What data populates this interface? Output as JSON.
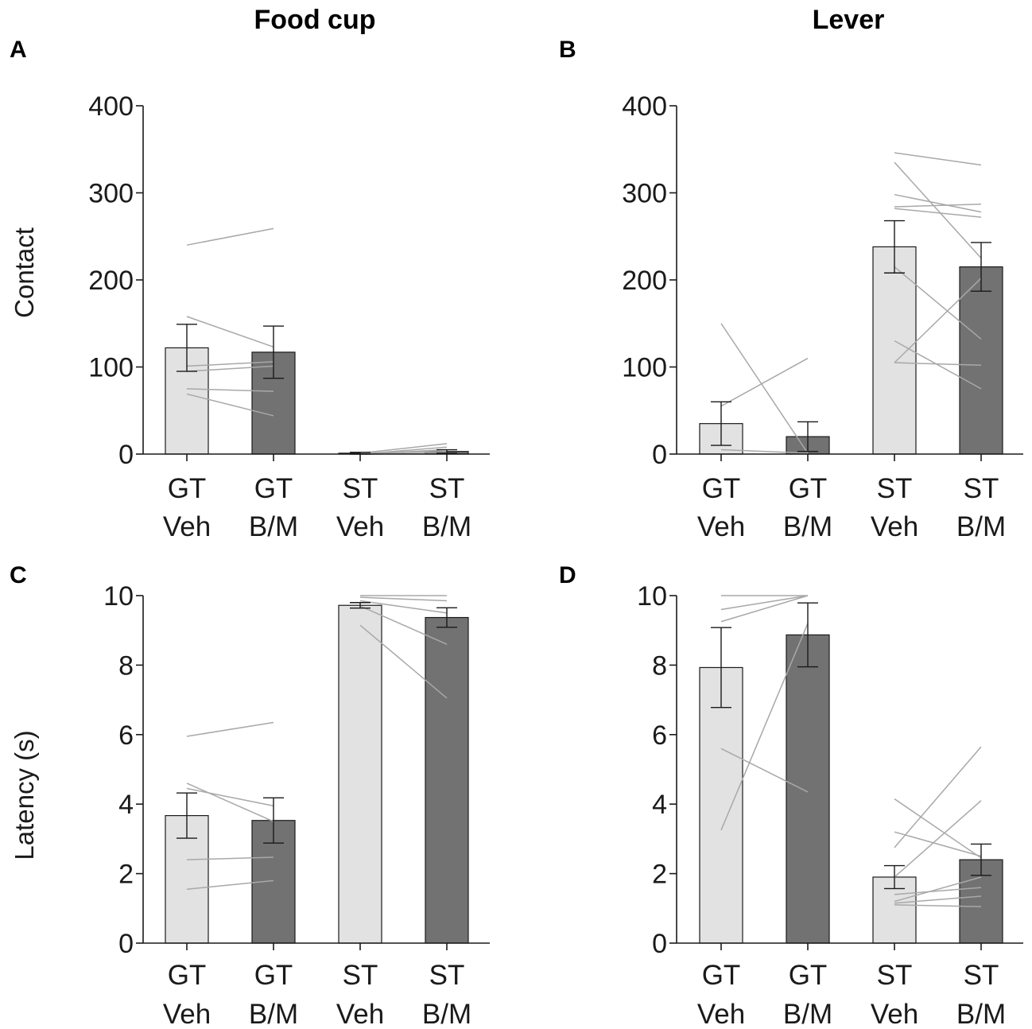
{
  "figure": {
    "column_titles": [
      "Food cup",
      "Lever"
    ]
  },
  "chart_data": [
    {
      "type": "bar",
      "panel": "A",
      "column": "Food cup",
      "ylabel": "Contact",
      "ylim": [
        0,
        400
      ],
      "yticks": [
        "0",
        "100",
        "200",
        "300",
        "400"
      ],
      "categories": [
        [
          "GT",
          "Veh"
        ],
        [
          "GT",
          "B/M"
        ],
        [
          "ST",
          "Veh"
        ],
        [
          "ST",
          "B/M"
        ]
      ],
      "values": [
        122,
        117,
        1,
        3
      ],
      "errors": [
        27,
        30,
        1,
        2
      ],
      "bar_colors": [
        "#e2e2e2",
        "#727272",
        "#e2e2e2",
        "#727272"
      ],
      "subject_lines": [
        {
          "pair": [
            0,
            1
          ],
          "from": 240,
          "to": 259
        },
        {
          "pair": [
            0,
            1
          ],
          "from": 158,
          "to": 123
        },
        {
          "pair": [
            0,
            1
          ],
          "from": 101,
          "to": 106
        },
        {
          "pair": [
            0,
            1
          ],
          "from": 95,
          "to": 101
        },
        {
          "pair": [
            0,
            1
          ],
          "from": 75,
          "to": 72
        },
        {
          "pair": [
            0,
            1
          ],
          "from": 69,
          "to": 44
        },
        {
          "pair": [
            2,
            3
          ],
          "from": 1,
          "to": 12
        },
        {
          "pair": [
            2,
            3
          ],
          "from": 0,
          "to": 8
        },
        {
          "pair": [
            2,
            3
          ],
          "from": 0,
          "to": 5
        },
        {
          "pair": [
            2,
            3
          ],
          "from": 1,
          "to": 3
        },
        {
          "pair": [
            2,
            3
          ],
          "from": 0,
          "to": 1
        }
      ]
    },
    {
      "type": "bar",
      "panel": "B",
      "column": "Lever",
      "ylabel": "",
      "ylim": [
        0,
        400
      ],
      "yticks": [
        "0",
        "100",
        "200",
        "300",
        "400"
      ],
      "categories": [
        [
          "GT",
          "Veh"
        ],
        [
          "GT",
          "B/M"
        ],
        [
          "ST",
          "Veh"
        ],
        [
          "ST",
          "B/M"
        ]
      ],
      "values": [
        35,
        20,
        238,
        215
      ],
      "errors": [
        25,
        17,
        30,
        28
      ],
      "bar_colors": [
        "#e2e2e2",
        "#727272",
        "#e2e2e2",
        "#727272"
      ],
      "subject_lines": [
        {
          "pair": [
            0,
            1
          ],
          "from": 150,
          "to": 1
        },
        {
          "pair": [
            0,
            1
          ],
          "from": 55,
          "to": 110
        },
        {
          "pair": [
            0,
            1
          ],
          "from": 5,
          "to": 1
        },
        {
          "pair": [
            2,
            3
          ],
          "from": 346,
          "to": 332
        },
        {
          "pair": [
            2,
            3
          ],
          "from": 335,
          "to": 225
        },
        {
          "pair": [
            2,
            3
          ],
          "from": 298,
          "to": 278
        },
        {
          "pair": [
            2,
            3
          ],
          "from": 284,
          "to": 287
        },
        {
          "pair": [
            2,
            3
          ],
          "from": 282,
          "to": 272
        },
        {
          "pair": [
            2,
            3
          ],
          "from": 130,
          "to": 75
        },
        {
          "pair": [
            2,
            3
          ],
          "from": 105,
          "to": 202
        },
        {
          "pair": [
            2,
            3
          ],
          "from": 105,
          "to": 102
        },
        {
          "pair": [
            2,
            3
          ],
          "from": 215,
          "to": 132
        }
      ]
    },
    {
      "type": "bar",
      "panel": "C",
      "column": "Food cup",
      "ylabel": "Latency (s)",
      "ylim": [
        0,
        10
      ],
      "yticks": [
        "0",
        "2",
        "4",
        "6",
        "8",
        "10"
      ],
      "categories": [
        [
          "GT",
          "Veh"
        ],
        [
          "GT",
          "B/M"
        ],
        [
          "ST",
          "Veh"
        ],
        [
          "ST",
          "B/M"
        ]
      ],
      "values": [
        3.67,
        3.53,
        9.72,
        9.37
      ],
      "errors": [
        0.65,
        0.65,
        0.08,
        0.28
      ],
      "bar_colors": [
        "#e2e2e2",
        "#727272",
        "#e2e2e2",
        "#727272"
      ],
      "subject_lines": [
        {
          "pair": [
            0,
            1
          ],
          "from": 5.95,
          "to": 6.35
        },
        {
          "pair": [
            0,
            1
          ],
          "from": 4.6,
          "to": 3.5
        },
        {
          "pair": [
            0,
            1
          ],
          "from": 4.45,
          "to": 3.95
        },
        {
          "pair": [
            0,
            1
          ],
          "from": 2.4,
          "to": 2.47
        },
        {
          "pair": [
            0,
            1
          ],
          "from": 1.55,
          "to": 1.8
        },
        {
          "pair": [
            2,
            3
          ],
          "from": 10,
          "to": 10
        },
        {
          "pair": [
            2,
            3
          ],
          "from": 9.95,
          "to": 9.85
        },
        {
          "pair": [
            2,
            3
          ],
          "from": 9.85,
          "to": 9.5
        },
        {
          "pair": [
            2,
            3
          ],
          "from": 9.7,
          "to": 8.6
        },
        {
          "pair": [
            2,
            3
          ],
          "from": 9.15,
          "to": 7.05
        }
      ]
    },
    {
      "type": "bar",
      "panel": "D",
      "column": "Lever",
      "ylabel": "",
      "ylim": [
        0,
        10
      ],
      "yticks": [
        "0",
        "2",
        "4",
        "6",
        "8",
        "10"
      ],
      "categories": [
        [
          "GT",
          "Veh"
        ],
        [
          "GT",
          "B/M"
        ],
        [
          "ST",
          "Veh"
        ],
        [
          "ST",
          "B/M"
        ]
      ],
      "values": [
        7.93,
        8.87,
        1.9,
        2.4
      ],
      "errors": [
        1.15,
        0.92,
        0.33,
        0.45
      ],
      "bar_colors": [
        "#e2e2e2",
        "#727272",
        "#e2e2e2",
        "#727272"
      ],
      "subject_lines": [
        {
          "pair": [
            0,
            1
          ],
          "from": 10,
          "to": 10
        },
        {
          "pair": [
            0,
            1
          ],
          "from": 9.6,
          "to": 10
        },
        {
          "pair": [
            0,
            1
          ],
          "from": 9.25,
          "to": 10
        },
        {
          "pair": [
            0,
            1
          ],
          "from": 5.6,
          "to": 4.35
        },
        {
          "pair": [
            0,
            1
          ],
          "from": 3.25,
          "to": 9.2
        },
        {
          "pair": [
            2,
            3
          ],
          "from": 4.15,
          "to": 2.45
        },
        {
          "pair": [
            2,
            3
          ],
          "from": 3.2,
          "to": 2.5
        },
        {
          "pair": [
            2,
            3
          ],
          "from": 2.75,
          "to": 5.65
        },
        {
          "pair": [
            2,
            3
          ],
          "from": 1.9,
          "to": 4.1
        },
        {
          "pair": [
            2,
            3
          ],
          "from": 1.4,
          "to": 1.6
        },
        {
          "pair": [
            2,
            3
          ],
          "from": 1.2,
          "to": 1.9
        },
        {
          "pair": [
            2,
            3
          ],
          "from": 1.15,
          "to": 1.35
        },
        {
          "pair": [
            2,
            3
          ],
          "from": 1.1,
          "to": 1.05
        }
      ]
    }
  ]
}
